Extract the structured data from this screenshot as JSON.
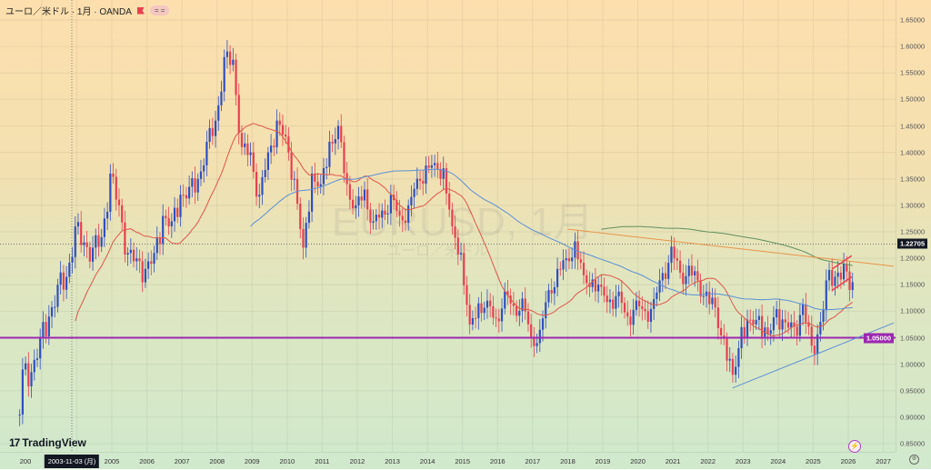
{
  "header": {
    "symbol_title": "ユーロ／米ドル · 1月 · OANDA",
    "pill": "= ="
  },
  "watermark": {
    "ticker": "EURUSD, 1月",
    "name": "ユーロ／米ドル"
  },
  "logo": {
    "mark": "17",
    "text": "TradingView"
  },
  "crosshair": {
    "date_label": "2003-11-03 (月)",
    "price": 1.22705,
    "price_label": "1.22705"
  },
  "colors": {
    "up": "#2f4fc0",
    "down": "#e8404f",
    "ma_fast": "#e0564a",
    "ma_mid": "#5b8fd6",
    "ma_slow": "#5f8f5f",
    "support": "#9c27b0",
    "trend_orange": "#e8944a",
    "trend_blue": "#5b8fd6",
    "channel": "#e8404f"
  },
  "chart_data": {
    "type": "candlestick",
    "title": "EURUSD, 1月",
    "interval": "monthly",
    "start_month": "2002-05",
    "start_open": 0.905,
    "quarterly_closes": [
      [
        "2002-06",
        0.99
      ],
      [
        "2002-09",
        0.985
      ],
      [
        "2002-12",
        1.05
      ],
      [
        "2003-03",
        1.09
      ],
      [
        "2003-06",
        1.15
      ],
      [
        "2003-09",
        1.165
      ],
      [
        "2003-12",
        1.26
      ],
      [
        "2004-03",
        1.23
      ],
      [
        "2004-06",
        1.22
      ],
      [
        "2004-09",
        1.24
      ],
      [
        "2004-12",
        1.36
      ],
      [
        "2005-03",
        1.3
      ],
      [
        "2005-06",
        1.21
      ],
      [
        "2005-09",
        1.2
      ],
      [
        "2005-12",
        1.18
      ],
      [
        "2006-03",
        1.21
      ],
      [
        "2006-06",
        1.28
      ],
      [
        "2006-09",
        1.27
      ],
      [
        "2006-12",
        1.32
      ],
      [
        "2007-03",
        1.335
      ],
      [
        "2007-06",
        1.35
      ],
      [
        "2007-09",
        1.42
      ],
      [
        "2007-12",
        1.46
      ],
      [
        "2008-03",
        1.58
      ],
      [
        "2008-06",
        1.575
      ],
      [
        "2008-09",
        1.41
      ],
      [
        "2008-12",
        1.4
      ],
      [
        "2009-03",
        1.32
      ],
      [
        "2009-06",
        1.4
      ],
      [
        "2009-09",
        1.46
      ],
      [
        "2009-12",
        1.43
      ],
      [
        "2010-03",
        1.35
      ],
      [
        "2010-06",
        1.22
      ],
      [
        "2010-09",
        1.36
      ],
      [
        "2010-12",
        1.34
      ],
      [
        "2011-03",
        1.42
      ],
      [
        "2011-06",
        1.45
      ],
      [
        "2011-09",
        1.34
      ],
      [
        "2011-12",
        1.3
      ],
      [
        "2012-03",
        1.33
      ],
      [
        "2012-06",
        1.27
      ],
      [
        "2012-09",
        1.29
      ],
      [
        "2012-12",
        1.32
      ],
      [
        "2013-03",
        1.28
      ],
      [
        "2013-06",
        1.3
      ],
      [
        "2013-09",
        1.35
      ],
      [
        "2013-12",
        1.375
      ],
      [
        "2014-03",
        1.38
      ],
      [
        "2014-06",
        1.37
      ],
      [
        "2014-09",
        1.26
      ],
      [
        "2014-12",
        1.21
      ],
      [
        "2015-03",
        1.075
      ],
      [
        "2015-06",
        1.115
      ],
      [
        "2015-09",
        1.12
      ],
      [
        "2015-12",
        1.086
      ],
      [
        "2016-03",
        1.138
      ],
      [
        "2016-06",
        1.11
      ],
      [
        "2016-09",
        1.124
      ],
      [
        "2016-12",
        1.052
      ],
      [
        "2017-03",
        1.065
      ],
      [
        "2017-06",
        1.14
      ],
      [
        "2017-09",
        1.18
      ],
      [
        "2017-12",
        1.2
      ],
      [
        "2018-03",
        1.232
      ],
      [
        "2018-06",
        1.168
      ],
      [
        "2018-09",
        1.16
      ],
      [
        "2018-12",
        1.146
      ],
      [
        "2019-03",
        1.122
      ],
      [
        "2019-06",
        1.137
      ],
      [
        "2019-09",
        1.09
      ],
      [
        "2019-12",
        1.12
      ],
      [
        "2020-03",
        1.1
      ],
      [
        "2020-06",
        1.123
      ],
      [
        "2020-09",
        1.172
      ],
      [
        "2020-12",
        1.222
      ],
      [
        "2021-03",
        1.173
      ],
      [
        "2021-06",
        1.186
      ],
      [
        "2021-09",
        1.158
      ],
      [
        "2021-12",
        1.137
      ],
      [
        "2022-03",
        1.107
      ],
      [
        "2022-06",
        1.048
      ],
      [
        "2022-09",
        0.98
      ],
      [
        "2022-12",
        1.07
      ],
      [
        "2023-03",
        1.084
      ],
      [
        "2023-06",
        1.091
      ],
      [
        "2023-09",
        1.057
      ],
      [
        "2023-12",
        1.104
      ],
      [
        "2024-03",
        1.079
      ],
      [
        "2024-06",
        1.071
      ],
      [
        "2024-09",
        1.113
      ],
      [
        "2024-12",
        1.035
      ],
      [
        "2025-03",
        1.08
      ],
      [
        "2025-06",
        1.178
      ],
      [
        "2025-09",
        1.173
      ],
      [
        "2025-12",
        1.175
      ],
      [
        "2026-02",
        1.155
      ]
    ],
    "moving_averages": [
      {
        "name": "MA 20",
        "period": 20,
        "color_key": "ma_fast"
      },
      {
        "name": "MA 80",
        "period": 80,
        "color_key": "ma_mid"
      },
      {
        "name": "MA 200",
        "period": 200,
        "color_key": "ma_slow"
      }
    ],
    "horizontal_lines": [
      {
        "name": "support 1.05",
        "price": 1.05,
        "label": "1.05000",
        "color_key": "support"
      }
    ],
    "trendlines": [
      {
        "name": "resistance-trendline",
        "from": [
          2018.0,
          1.255
        ],
        "to": [
          2027.3,
          1.185
        ],
        "color_key": "trend_orange"
      },
      {
        "name": "support-trendline",
        "from": [
          2022.7,
          0.955
        ],
        "to": [
          2027.3,
          1.078
        ],
        "color_key": "trend_blue"
      },
      {
        "name": "channel-upper",
        "from": [
          2025.55,
          1.18
        ],
        "to": [
          2026.1,
          1.205
        ],
        "color_key": "channel"
      },
      {
        "name": "channel-lower",
        "from": [
          2025.55,
          1.14
        ],
        "to": [
          2026.1,
          1.165
        ],
        "color_key": "channel"
      }
    ],
    "y_ticks": [
      "1.65000",
      "1.60000",
      "1.55000",
      "1.50000",
      "1.45000",
      "1.40000",
      "1.35000",
      "1.30000",
      "1.25000",
      "1.20000",
      "1.15000",
      "1.10000",
      "1.05000",
      "1.00000",
      "0.95000",
      "0.90000",
      "0.85000"
    ],
    "x_ticks": [
      "200",
      "2005",
      "2006",
      "2007",
      "2008",
      "2009",
      "2010",
      "2011",
      "2012",
      "2013",
      "2014",
      "2015",
      "2016",
      "2017",
      "2018",
      "2019",
      "2020",
      "2021",
      "2022",
      "2023",
      "2024",
      "2025",
      "2026",
      "2027"
    ],
    "ylim": [
      0.85,
      1.65
    ],
    "xlim": [
      2002.2,
      2027.4
    ],
    "grid": true
  }
}
